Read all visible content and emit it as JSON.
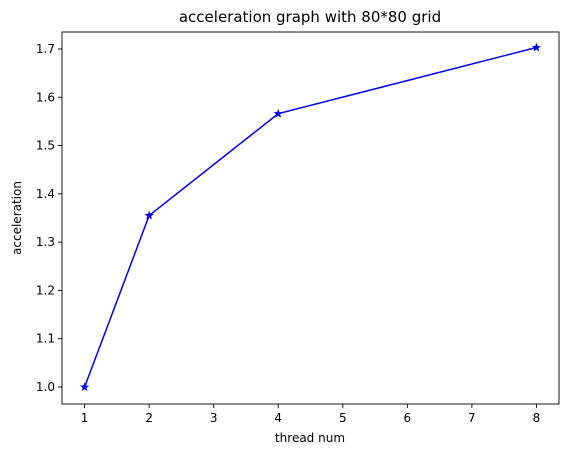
{
  "chart_data": {
    "type": "line",
    "title": "acceleration graph with 80*80 grid",
    "xlabel": "thread num",
    "ylabel": "acceleration",
    "xlim": [
      0.65,
      8.35
    ],
    "ylim": [
      0.9649,
      1.7351
    ],
    "xticks": [
      1,
      2,
      3,
      4,
      5,
      6,
      7,
      8
    ],
    "yticks": [
      1.0,
      1.1,
      1.2,
      1.3,
      1.4,
      1.5,
      1.6,
      1.7
    ],
    "grid": false,
    "legend": "none",
    "series": [
      {
        "x": [
          1,
          2,
          4,
          8
        ],
        "y": [
          1.0,
          1.355,
          1.566,
          1.703
        ],
        "color": "#0000ff",
        "marker": "star",
        "line_style": "solid"
      }
    ]
  }
}
